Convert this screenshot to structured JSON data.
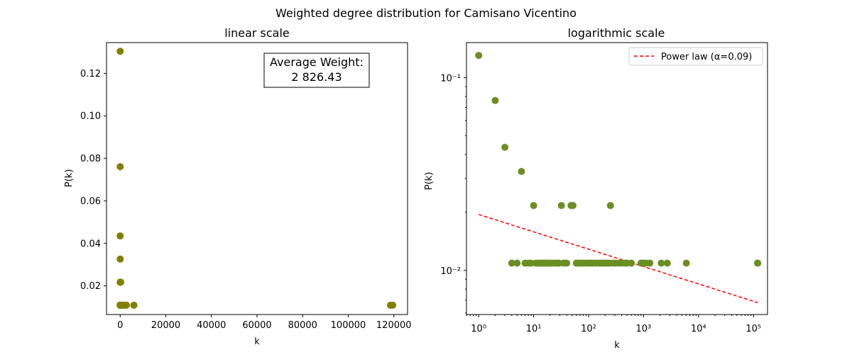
{
  "suptitle": "Weighted degree distribution for Camisano Vicentino",
  "colors": {
    "linear_points": "#808000",
    "log_points": "#6b8e23",
    "fit_line": "#ff0000"
  },
  "chart_data": [
    {
      "type": "scatter",
      "title": "linear scale",
      "xlabel": "k",
      "ylabel": "P(k)",
      "xlim": [
        -6000,
        126000
      ],
      "ylim": [
        0.0065,
        0.1345
      ],
      "xticks": [
        0,
        20000,
        40000,
        60000,
        80000,
        100000,
        120000
      ],
      "xtick_labels": [
        "0",
        "20000",
        "40000",
        "60000",
        "80000",
        "100000",
        "120000"
      ],
      "yticks": [
        0.02,
        0.04,
        0.06,
        0.08,
        0.1,
        0.12
      ],
      "ytick_labels": [
        "0.02",
        "0.04",
        "0.06",
        "0.08",
        "0.10",
        "0.12"
      ],
      "annotation": [
        "Average Weight:",
        "2 826.43"
      ],
      "points": [
        [
          1,
          0.1304
        ],
        [
          2,
          0.0761
        ],
        [
          3,
          0.0435
        ],
        [
          6,
          0.0326
        ],
        [
          10,
          0.0217
        ],
        [
          32,
          0.0217
        ],
        [
          48,
          0.0217
        ],
        [
          52,
          0.0217
        ],
        [
          250,
          0.0217
        ],
        [
          4,
          0.0109
        ],
        [
          5,
          0.0109
        ],
        [
          7,
          0.0109
        ],
        [
          8,
          0.0109
        ],
        [
          9,
          0.0109
        ],
        [
          12,
          0.0109
        ],
        [
          15,
          0.0109
        ],
        [
          20,
          0.0109
        ],
        [
          30,
          0.0109
        ],
        [
          60,
          0.0109
        ],
        [
          100,
          0.0109
        ],
        [
          200,
          0.0109
        ],
        [
          400,
          0.0109
        ],
        [
          600,
          0.0109
        ],
        [
          900,
          0.0109
        ],
        [
          1300,
          0.0109
        ],
        [
          2100,
          0.0109
        ],
        [
          2700,
          0.0109
        ],
        [
          6000,
          0.0109
        ],
        [
          118500,
          0.0109
        ],
        [
          119500,
          0.0109
        ]
      ]
    },
    {
      "type": "scatter",
      "title": "logarithmic scale",
      "xlabel": "k",
      "ylabel": "P(k)",
      "xscale": "log",
      "yscale": "log",
      "xlim": [
        0.6,
        180000
      ],
      "ylim": [
        0.0059,
        0.152
      ],
      "xtick_exponents": [
        0,
        1,
        2,
        3,
        4,
        5
      ],
      "ytick_exponents": [
        -2,
        -1
      ],
      "legend": {
        "label": "Power law (α=0.09)",
        "placement": "upper right"
      },
      "fit_line": {
        "x": [
          1,
          120000
        ],
        "y": [
          0.0195,
          0.0068
        ]
      },
      "points": [
        [
          1,
          0.1304
        ],
        [
          2,
          0.0761
        ],
        [
          3,
          0.0435
        ],
        [
          6,
          0.0326
        ],
        [
          10,
          0.0217
        ],
        [
          32,
          0.0217
        ],
        [
          48,
          0.0217
        ],
        [
          52,
          0.0217
        ],
        [
          250,
          0.0217
        ],
        [
          4,
          0.0109
        ],
        [
          5,
          0.0109
        ],
        [
          7,
          0.0109
        ],
        [
          8,
          0.0109
        ],
        [
          9,
          0.0109
        ],
        [
          11,
          0.0109
        ],
        [
          12,
          0.0109
        ],
        [
          13,
          0.0109
        ],
        [
          14,
          0.0109
        ],
        [
          15,
          0.0109
        ],
        [
          16,
          0.0109
        ],
        [
          17,
          0.0109
        ],
        [
          18,
          0.0109
        ],
        [
          19,
          0.0109
        ],
        [
          20,
          0.0109
        ],
        [
          22,
          0.0109
        ],
        [
          25,
          0.0109
        ],
        [
          27,
          0.0109
        ],
        [
          29,
          0.0109
        ],
        [
          35,
          0.0109
        ],
        [
          40,
          0.0109
        ],
        [
          60,
          0.0109
        ],
        [
          66,
          0.0109
        ],
        [
          72,
          0.0109
        ],
        [
          80,
          0.0109
        ],
        [
          90,
          0.0109
        ],
        [
          100,
          0.0109
        ],
        [
          110,
          0.0109
        ],
        [
          120,
          0.0109
        ],
        [
          140,
          0.0109
        ],
        [
          160,
          0.0109
        ],
        [
          175,
          0.0109
        ],
        [
          190,
          0.0109
        ],
        [
          210,
          0.0109
        ],
        [
          230,
          0.0109
        ],
        [
          260,
          0.0109
        ],
        [
          300,
          0.0109
        ],
        [
          350,
          0.0109
        ],
        [
          400,
          0.0109
        ],
        [
          450,
          0.0109
        ],
        [
          500,
          0.0109
        ],
        [
          600,
          0.0109
        ],
        [
          900,
          0.0109
        ],
        [
          1000,
          0.0109
        ],
        [
          1100,
          0.0109
        ],
        [
          1300,
          0.0109
        ],
        [
          2100,
          0.0109
        ],
        [
          2700,
          0.0109
        ],
        [
          6000,
          0.0109
        ],
        [
          118500,
          0.0109
        ],
        [
          119500,
          0.0109
        ]
      ]
    }
  ]
}
